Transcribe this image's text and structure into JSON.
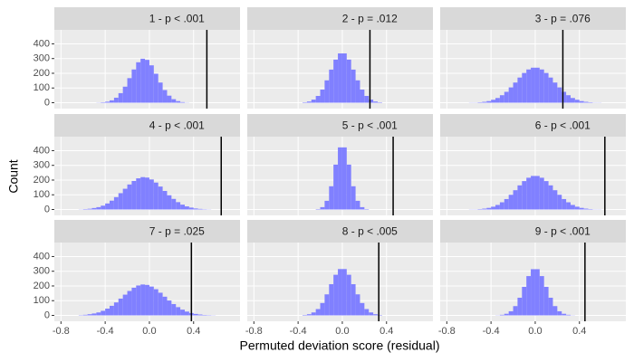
{
  "chart_data": {
    "type": "histogram",
    "x_label": "Permuted deviation score (residual)",
    "y_label": "Count",
    "bins": [
      -0.64,
      -0.6,
      -0.56,
      -0.52,
      -0.48,
      -0.44,
      -0.4,
      -0.36,
      -0.32,
      -0.28,
      -0.24,
      -0.2,
      -0.16,
      -0.12,
      -0.08,
      -0.04,
      0.0,
      0.04,
      0.08,
      0.12,
      0.16,
      0.2,
      0.24,
      0.28,
      0.32,
      0.36,
      0.4,
      0.44,
      0.48,
      0.52,
      0.56,
      0.6,
      0.64
    ],
    "xlim": [
      -0.86,
      0.82
    ],
    "ylim": [
      -40,
      495
    ],
    "xticks": [
      -0.8,
      -0.4,
      {
        "value": 0,
        "label": "0.0"
      },
      0.4
    ],
    "yticks": [
      0,
      100,
      200,
      300,
      400
    ],
    "color": "#8080ff",
    "line_color": "#000000",
    "grid": true,
    "facets": [
      {
        "title": "1 - p < .001",
        "threshold": 0.52,
        "values": [
          0,
          0,
          0,
          0,
          1,
          3,
          7,
          16,
          34,
          65,
          109,
          167,
          226,
          275,
          299,
          291,
          254,
          197,
          137,
          86,
          48,
          24,
          11,
          4,
          1,
          0,
          0,
          0,
          0,
          0,
          0,
          0
        ]
      },
      {
        "title": "2 - p = .012",
        "threshold": 0.25,
        "values": [
          0,
          0,
          0,
          0,
          0,
          0,
          0,
          3,
          8,
          21,
          46,
          89,
          152,
          225,
          293,
          335,
          335,
          293,
          225,
          152,
          89,
          46,
          21,
          8,
          3,
          0,
          0,
          0,
          0,
          0,
          0,
          0
        ]
      },
      {
        "title": "3 - p = .076",
        "threshold": 0.25,
        "values": [
          0,
          1,
          1,
          3,
          6,
          11,
          20,
          32,
          51,
          74,
          104,
          137,
          171,
          202,
          226,
          238,
          238,
          226,
          202,
          171,
          137,
          104,
          74,
          51,
          32,
          20,
          11,
          6,
          3,
          1,
          1,
          0
        ]
      },
      {
        "title": "4 - p < .001",
        "threshold": 0.65,
        "values": [
          1,
          3,
          5,
          10,
          16,
          26,
          41,
          60,
          84,
          111,
          141,
          170,
          194,
          212,
          220,
          217,
          204,
          183,
          156,
          126,
          97,
          72,
          50,
          33,
          21,
          13,
          7,
          4,
          2,
          1,
          0,
          0
        ]
      },
      {
        "title": "5 - p < .001",
        "threshold": 0.46,
        "values": [
          0,
          0,
          0,
          0,
          0,
          0,
          0,
          0,
          0,
          0,
          3,
          16,
          59,
          158,
          305,
          422,
          422,
          305,
          158,
          59,
          16,
          3,
          0,
          0,
          0,
          0,
          0,
          0,
          0,
          0,
          0,
          0
        ]
      },
      {
        "title": "6 - p < .001",
        "threshold": 0.63,
        "values": [
          0,
          1,
          1,
          3,
          6,
          11,
          19,
          31,
          49,
          71,
          100,
          131,
          164,
          193,
          216,
          228,
          228,
          216,
          193,
          164,
          131,
          100,
          71,
          49,
          31,
          19,
          11,
          6,
          3,
          1,
          1,
          0
        ]
      },
      {
        "title": "7 - p = .025",
        "threshold": 0.38,
        "values": [
          2,
          4,
          8,
          13,
          20,
          31,
          46,
          65,
          88,
          114,
          141,
          166,
          188,
          203,
          210,
          207,
          196,
          178,
          154,
          127,
          101,
          77,
          56,
          39,
          26,
          16,
          10,
          6,
          3,
          2,
          1,
          0
        ]
      },
      {
        "title": "8 - p < .005",
        "threshold": 0.33,
        "values": [
          0,
          0,
          0,
          0,
          0,
          0,
          0,
          3,
          8,
          20,
          43,
          84,
          143,
          212,
          276,
          315,
          315,
          276,
          212,
          143,
          84,
          43,
          20,
          8,
          3,
          0,
          0,
          0,
          0,
          0,
          0,
          0
        ]
      },
      {
        "title": "9 - p < .001",
        "threshold": 0.45,
        "values": [
          0,
          0,
          0,
          0,
          0,
          0,
          0,
          1,
          4,
          11,
          28,
          63,
          120,
          194,
          267,
          314,
          314,
          267,
          194,
          120,
          63,
          28,
          11,
          4,
          1,
          0,
          0,
          0,
          0,
          0,
          0,
          0
        ]
      }
    ]
  }
}
